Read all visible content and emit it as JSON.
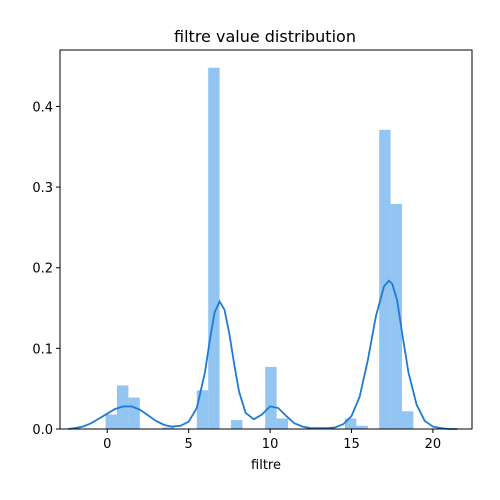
{
  "chart_data": {
    "type": "bar",
    "title": "filtre value distribution",
    "xlabel": "filtre",
    "ylabel": "",
    "xlim": [
      -2.9,
      22.4
    ],
    "ylim": [
      0,
      0.47
    ],
    "grid": false,
    "legend": "none",
    "x_ticks": [
      0,
      5,
      10,
      15,
      20
    ],
    "y_ticks": [
      0.0,
      0.1,
      0.2,
      0.3,
      0.4
    ],
    "x_tick_labels": [
      "0",
      "5",
      "10",
      "15",
      "20"
    ],
    "y_tick_labels": [
      "0.0",
      "0.1",
      "0.2",
      "0.3",
      "0.4"
    ],
    "bar_color": "#92c5f2",
    "line_color": "#1f7ad6",
    "histogram": [
      {
        "x0": -0.1,
        "x1": 0.6,
        "value": 0.018
      },
      {
        "x0": 0.6,
        "x1": 1.3,
        "value": 0.054
      },
      {
        "x0": 1.3,
        "x1": 2.0,
        "value": 0.039
      },
      {
        "x0": 2.0,
        "x1": 2.7,
        "value": 0.0
      },
      {
        "x0": 2.7,
        "x1": 3.4,
        "value": 0.0
      },
      {
        "x0": 3.4,
        "x1": 4.1,
        "value": 0.002
      },
      {
        "x0": 4.1,
        "x1": 4.8,
        "value": 0.0
      },
      {
        "x0": 4.8,
        "x1": 5.5,
        "value": 0.0
      },
      {
        "x0": 5.5,
        "x1": 6.2,
        "value": 0.048
      },
      {
        "x0": 6.2,
        "x1": 6.9,
        "value": 0.448
      },
      {
        "x0": 6.9,
        "x1": 7.6,
        "value": 0.0
      },
      {
        "x0": 7.6,
        "x1": 8.3,
        "value": 0.011
      },
      {
        "x0": 8.3,
        "x1": 9.0,
        "value": 0.0
      },
      {
        "x0": 9.0,
        "x1": 9.7,
        "value": 0.0
      },
      {
        "x0": 9.7,
        "x1": 10.4,
        "value": 0.077
      },
      {
        "x0": 10.4,
        "x1": 11.1,
        "value": 0.013
      },
      {
        "x0": 11.1,
        "x1": 11.8,
        "value": 0.0
      },
      {
        "x0": 11.8,
        "x1": 12.5,
        "value": 0.0
      },
      {
        "x0": 12.5,
        "x1": 13.2,
        "value": 0.0
      },
      {
        "x0": 13.2,
        "x1": 13.9,
        "value": 0.0
      },
      {
        "x0": 13.9,
        "x1": 14.6,
        "value": 0.0
      },
      {
        "x0": 14.6,
        "x1": 15.3,
        "value": 0.013
      },
      {
        "x0": 15.3,
        "x1": 16.0,
        "value": 0.004
      },
      {
        "x0": 16.0,
        "x1": 16.7,
        "value": 0.0
      },
      {
        "x0": 16.7,
        "x1": 17.4,
        "value": 0.371
      },
      {
        "x0": 17.4,
        "x1": 18.1,
        "value": 0.279
      },
      {
        "x0": 18.1,
        "x1": 18.8,
        "value": 0.022
      }
    ],
    "kde": {
      "x": [
        -2.4,
        -2.0,
        -1.5,
        -1.0,
        -0.5,
        0.0,
        0.5,
        1.0,
        1.5,
        2.0,
        2.5,
        3.0,
        3.5,
        4.0,
        4.5,
        5.0,
        5.5,
        6.0,
        6.3,
        6.6,
        6.9,
        7.2,
        7.5,
        7.8,
        8.1,
        8.5,
        9.0,
        9.5,
        10.0,
        10.5,
        11.0,
        11.5,
        12.0,
        12.5,
        13.0,
        13.5,
        14.0,
        14.5,
        15.0,
        15.5,
        16.0,
        16.5,
        17.0,
        17.3,
        17.5,
        17.8,
        18.1,
        18.5,
        19.0,
        19.5,
        20.0,
        20.5,
        21.0,
        21.5
      ],
      "y": [
        0.0,
        0.001,
        0.003,
        0.007,
        0.013,
        0.019,
        0.025,
        0.028,
        0.028,
        0.024,
        0.017,
        0.01,
        0.005,
        0.003,
        0.004,
        0.009,
        0.026,
        0.07,
        0.11,
        0.145,
        0.158,
        0.148,
        0.118,
        0.08,
        0.046,
        0.02,
        0.012,
        0.018,
        0.028,
        0.026,
        0.016,
        0.007,
        0.003,
        0.001,
        0.001,
        0.001,
        0.002,
        0.006,
        0.016,
        0.04,
        0.085,
        0.14,
        0.177,
        0.184,
        0.18,
        0.16,
        0.12,
        0.07,
        0.03,
        0.01,
        0.003,
        0.001,
        0.0,
        0.0
      ]
    }
  }
}
